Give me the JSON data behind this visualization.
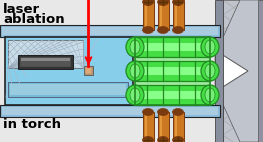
{
  "bg_color": "#e8e8e8",
  "title_line1": "laser",
  "title_line2": "ablation",
  "subtitle": "in torch",
  "laser_color": "#ff0000",
  "cell_blue": "#87CEEB",
  "cell_blue_dark": "#5aafda",
  "cell_edge": "#222222",
  "coil_green": "#44dd44",
  "coil_green_light": "#88ff88",
  "coil_green_dark": "#228822",
  "coil_glow": "#00cc00",
  "copper_mid": "#cc7722",
  "copper_dark": "#7a3a10",
  "copper_light": "#e8a040",
  "torch_gray": "#b0b8c0",
  "torch_dark": "#555566",
  "hatch_gray": "#a0a0a0",
  "white": "#ffffff",
  "near_white": "#e0e8f0",
  "text_color": "#000000",
  "blue_tube": "#8bbcdd",
  "dark_line": "#333333"
}
